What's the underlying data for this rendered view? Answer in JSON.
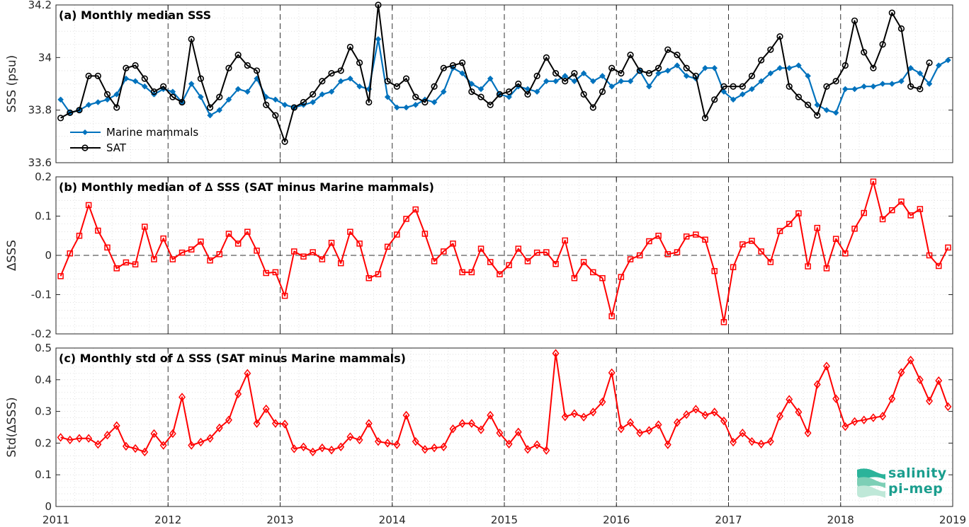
{
  "chart_data": [
    {
      "type": "line",
      "title": "(a) Monthly median SSS",
      "ylabel": "SSS (psu)",
      "ylim": [
        33.6,
        34.2
      ],
      "yticks": [
        "33.6",
        "33.8",
        "34",
        "34.2"
      ],
      "xlim": [
        2011,
        2019
      ],
      "xticks": [
        "2011",
        "2012",
        "2013",
        "2014",
        "2015",
        "2016",
        "2017",
        "2018",
        "2019"
      ],
      "legend": "upper-left",
      "series": [
        {
          "name": "Marine mammals",
          "color": "#0072bd",
          "marker": "diamond-filled",
          "values": [
            33.84,
            33.79,
            33.8,
            33.82,
            33.83,
            33.84,
            33.86,
            33.92,
            33.91,
            33.89,
            33.86,
            33.88,
            33.87,
            33.83,
            33.9,
            33.85,
            33.78,
            33.8,
            33.84,
            33.88,
            33.87,
            33.92,
            33.85,
            33.84,
            33.82,
            33.81,
            33.82,
            33.83,
            33.86,
            33.87,
            33.91,
            33.92,
            33.89,
            33.88,
            34.07,
            33.85,
            33.81,
            33.81,
            33.82,
            33.84,
            33.83,
            33.87,
            33.96,
            33.94,
            33.9,
            33.88,
            33.92,
            33.86,
            33.85,
            33.89,
            33.88,
            33.87,
            33.91,
            33.91,
            33.93,
            33.91,
            33.94,
            33.91,
            33.93,
            33.89,
            33.91,
            33.91,
            33.95,
            33.89,
            33.94,
            33.95,
            33.97,
            33.93,
            33.92,
            33.96,
            33.96,
            33.87,
            33.84,
            33.86,
            33.88,
            33.91,
            33.94,
            33.96,
            33.96,
            33.97,
            33.93,
            33.82,
            33.8,
            33.79,
            33.88,
            33.88,
            33.89,
            33.89,
            33.9,
            33.9,
            33.91,
            33.96,
            33.94,
            33.9,
            33.97,
            33.99
          ]
        },
        {
          "name": "SAT",
          "color": "#000000",
          "marker": "circle-open",
          "values": [
            33.77,
            33.79,
            33.8,
            33.93,
            33.93,
            33.86,
            33.81,
            33.96,
            33.97,
            33.92,
            33.87,
            33.89,
            33.85,
            33.83,
            34.07,
            33.92,
            33.81,
            33.85,
            33.96,
            34.01,
            33.97,
            33.95,
            33.82,
            33.78,
            33.68,
            33.81,
            33.83,
            33.86,
            33.91,
            33.94,
            33.95,
            34.04,
            33.98,
            33.83,
            34.2,
            33.91,
            33.89,
            33.92,
            33.85,
            33.83,
            33.89,
            33.96,
            33.97,
            33.98,
            33.87,
            33.85,
            33.82,
            33.86,
            33.87,
            33.9,
            33.86,
            33.93,
            34.0,
            33.94,
            33.91,
            33.94,
            33.86,
            33.81,
            33.87,
            33.96,
            33.94,
            34.01,
            33.95,
            33.94,
            33.96,
            34.03,
            34.01,
            33.96,
            33.93,
            33.77,
            33.84,
            33.89,
            33.89,
            33.89,
            33.93,
            33.99,
            34.03,
            34.08,
            33.89,
            33.85,
            33.82,
            33.78,
            33.89,
            33.91,
            33.97,
            34.14,
            34.02,
            33.96,
            34.05,
            34.17,
            34.11,
            33.89,
            33.88,
            33.98
          ]
        }
      ]
    },
    {
      "type": "line",
      "title": "(b) Monthly median of ∆ SSS (SAT minus Marine mammals)",
      "ylabel": "∆SSS",
      "ylim": [
        -0.2,
        0.2
      ],
      "yticks": [
        "-0.2",
        "-0.1",
        "0",
        "0.1",
        "0.2"
      ],
      "xlim": [
        2011,
        2019
      ],
      "zero_line": true,
      "series": [
        {
          "name": "",
          "color": "#ff0000",
          "marker": "square-open",
          "values": [
            -0.053,
            0.005,
            0.05,
            0.128,
            0.063,
            0.02,
            -0.033,
            -0.018,
            -0.023,
            0.073,
            -0.01,
            0.043,
            -0.01,
            0.007,
            0.015,
            0.035,
            -0.013,
            0.003,
            0.055,
            0.03,
            0.06,
            0.012,
            -0.045,
            -0.043,
            -0.103,
            0.01,
            -0.003,
            0.008,
            -0.01,
            0.032,
            -0.02,
            0.06,
            0.03,
            -0.058,
            -0.048,
            0.022,
            0.053,
            0.093,
            0.117,
            0.055,
            -0.015,
            0.01,
            0.03,
            -0.043,
            -0.043,
            0.017,
            -0.017,
            -0.048,
            -0.025,
            0.017,
            -0.015,
            0.007,
            0.008,
            -0.022,
            0.038,
            -0.058,
            -0.017,
            -0.043,
            -0.058,
            -0.155,
            -0.055,
            -0.01,
            0.0,
            0.036,
            0.05,
            0.003,
            0.008,
            0.048,
            0.053,
            0.04,
            -0.04,
            -0.17,
            -0.03,
            0.028,
            0.037,
            0.01,
            -0.017,
            0.062,
            0.08,
            0.107,
            -0.028,
            0.07,
            -0.033,
            0.042,
            0.005,
            0.068,
            0.108,
            0.188,
            0.092,
            0.115,
            0.137,
            0.102,
            0.118,
            0.0,
            -0.027,
            0.02
          ]
        }
      ]
    },
    {
      "type": "line",
      "title": "(c) Monthly std of ∆ SSS (SAT minus Marine mammals)",
      "ylabel": "Std(∆SSS)",
      "ylim": [
        0,
        0.5
      ],
      "yticks": [
        "0",
        "0.1",
        "0.2",
        "0.3",
        "0.4",
        "0.5"
      ],
      "xlim": [
        2011,
        2019
      ],
      "series": [
        {
          "name": "",
          "color": "#ff0000",
          "marker": "diamond-open",
          "values": [
            0.218,
            0.21,
            0.215,
            0.215,
            0.196,
            0.225,
            0.255,
            0.19,
            0.183,
            0.172,
            0.23,
            0.193,
            0.23,
            0.345,
            0.193,
            0.203,
            0.215,
            0.248,
            0.273,
            0.355,
            0.42,
            0.262,
            0.308,
            0.262,
            0.26,
            0.182,
            0.188,
            0.172,
            0.185,
            0.178,
            0.188,
            0.22,
            0.21,
            0.262,
            0.205,
            0.2,
            0.195,
            0.288,
            0.205,
            0.18,
            0.185,
            0.188,
            0.245,
            0.262,
            0.262,
            0.242,
            0.288,
            0.232,
            0.197,
            0.235,
            0.18,
            0.195,
            0.177,
            0.483,
            0.283,
            0.293,
            0.282,
            0.298,
            0.33,
            0.422,
            0.245,
            0.265,
            0.232,
            0.24,
            0.258,
            0.195,
            0.265,
            0.29,
            0.307,
            0.288,
            0.298,
            0.27,
            0.203,
            0.232,
            0.205,
            0.197,
            0.205,
            0.285,
            0.338,
            0.298,
            0.232,
            0.385,
            0.443,
            0.34,
            0.252,
            0.268,
            0.273,
            0.28,
            0.285,
            0.34,
            0.423,
            0.462,
            0.4,
            0.333,
            0.397,
            0.315
          ]
        }
      ]
    }
  ],
  "logo": {
    "line1": "salinity",
    "line2": "pi-mep",
    "color": "#1b9e8e"
  }
}
